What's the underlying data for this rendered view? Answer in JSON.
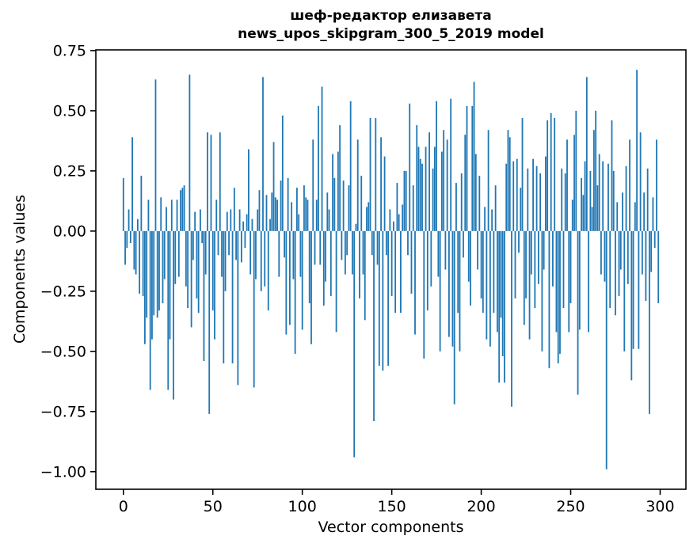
{
  "figure": {
    "background": "#ffffff"
  },
  "chart_data": {
    "type": "bar",
    "title_line1": "шеф-редактор елизавета",
    "title_line2": "news_upos_skipgram_300_5_2019 model",
    "xlabel": "Vector components",
    "ylabel": "Components values",
    "bar_color": "#1f77b4",
    "axis_color": "#000000",
    "grid": false,
    "legend": null,
    "x_start": 0,
    "xlim": [
      -15.4,
      314.4
    ],
    "ylim": [
      -1.073,
      0.753
    ],
    "xtick_values": [
      0,
      50,
      100,
      150,
      200,
      250,
      300
    ],
    "xtick_labels": [
      "0",
      "50",
      "100",
      "150",
      "200",
      "250",
      "300"
    ],
    "ytick_values": [
      0.75,
      0.5,
      0.25,
      0,
      -0.25,
      -0.5,
      -0.75,
      -1
    ],
    "ytick_labels": [
      "0.75",
      "0.50",
      "0.25",
      "0.00",
      "−0.25",
      "−0.50",
      "−0.75",
      "−1.00"
    ],
    "values": [
      0.22,
      -0.14,
      -0.07,
      0.09,
      -0.05,
      0.39,
      -0.16,
      -0.18,
      0.05,
      -0.26,
      0.23,
      -0.27,
      -0.47,
      -0.36,
      0.13,
      -0.66,
      -0.45,
      -0.35,
      0.63,
      -0.36,
      -0.33,
      0.14,
      -0.3,
      -0.2,
      0.1,
      -0.66,
      -0.45,
      0.13,
      -0.7,
      -0.22,
      0.13,
      -0.19,
      0.17,
      0.18,
      0.19,
      -0.23,
      -0.32,
      0.65,
      -0.4,
      -0.12,
      0.08,
      -0.28,
      -0.34,
      0.09,
      -0.05,
      -0.54,
      -0.18,
      0.41,
      -0.76,
      0.4,
      -0.33,
      -0.45,
      0.13,
      -0.1,
      0.41,
      -0.19,
      -0.55,
      -0.25,
      0.08,
      -0.1,
      0.09,
      -0.55,
      0.18,
      -0.12,
      -0.64,
      0.09,
      -0.13,
      0.04,
      -0.07,
      0.07,
      0.34,
      -0.18,
      0.05,
      -0.65,
      -0.2,
      0.09,
      0.17,
      -0.25,
      0.64,
      -0.23,
      0.15,
      -0.33,
      0.05,
      0.16,
      0.37,
      0.14,
      0.13,
      -0.19,
      0.21,
      0.48,
      -0.11,
      -0.43,
      0.22,
      -0.39,
      0.12,
      -0.2,
      -0.51,
      0.18,
      0.07,
      -0.19,
      -0.41,
      0.19,
      0.14,
      0.13,
      -0.3,
      -0.47,
      0.38,
      -0.14,
      0.13,
      0.52,
      -0.14,
      0.6,
      -0.31,
      -0.21,
      0.16,
      0.09,
      -0.27,
      0.32,
      0.22,
      -0.42,
      0.33,
      0.44,
      -0.12,
      0.21,
      -0.18,
      -0.1,
      0.19,
      0.54,
      -0.18,
      -0.94,
      0.03,
      0.38,
      -0.28,
      0.23,
      -0.18,
      -0.37,
      0.1,
      0.12,
      0.47,
      -0.1,
      -0.79,
      0.47,
      -0.14,
      -0.56,
      0.39,
      -0.58,
      0.31,
      -0.1,
      -0.56,
      0.09,
      -0.27,
      0.04,
      -0.34,
      0.2,
      0.07,
      -0.34,
      0.11,
      0.25,
      0.25,
      -0.1,
      0.53,
      -0.26,
      0.19,
      -0.43,
      0.44,
      0.35,
      0.3,
      0.28,
      -0.53,
      0.35,
      -0.33,
      0.41,
      -0.23,
      0.26,
      0.35,
      0.54,
      -0.19,
      -0.5,
      0.33,
      0.42,
      -0.16,
      0.38,
      -0.44,
      0.55,
      -0.48,
      -0.72,
      0.2,
      -0.34,
      -0.5,
      0.24,
      -0.11,
      0.4,
      0.52,
      -0.21,
      -0.31,
      0.52,
      0.62,
      0.32,
      -0.16,
      0.23,
      -0.28,
      -0.34,
      0.1,
      -0.45,
      0.42,
      -0.48,
      0.09,
      -0.34,
      0.19,
      -0.42,
      -0.63,
      -0.36,
      -0.52,
      -0.63,
      0.28,
      0.42,
      0.39,
      -0.73,
      0.29,
      -0.28,
      0.3,
      -0.09,
      0.18,
      0.47,
      -0.39,
      -0.28,
      0.26,
      -0.45,
      -0.18,
      0.3,
      -0.32,
      0.27,
      -0.22,
      0.24,
      -0.5,
      -0.16,
      0.31,
      0.46,
      -0.57,
      0.49,
      -0.23,
      0.47,
      -0.42,
      -0.55,
      -0.51,
      0.26,
      -0.32,
      0.24,
      0.38,
      -0.42,
      -0.3,
      0.13,
      0.4,
      0.5,
      -0.68,
      -0.41,
      0.22,
      0.15,
      0.29,
      0.64,
      -0.42,
      0.25,
      0.1,
      0.42,
      0.5,
      0.19,
      0.32,
      -0.18,
      0.29,
      -0.21,
      -0.99,
      0.28,
      -0.32,
      0.46,
      0.25,
      -0.35,
      0.12,
      -0.27,
      -0.16,
      0.16,
      -0.5,
      0.27,
      -0.22,
      0.38,
      -0.62,
      -0.49,
      0.12,
      0.67,
      -0.49,
      0.41,
      -0.18,
      0.16,
      -0.29,
      0.26,
      -0.76,
      -0.17,
      0.14,
      -0.07,
      0.38,
      -0.3
    ]
  }
}
